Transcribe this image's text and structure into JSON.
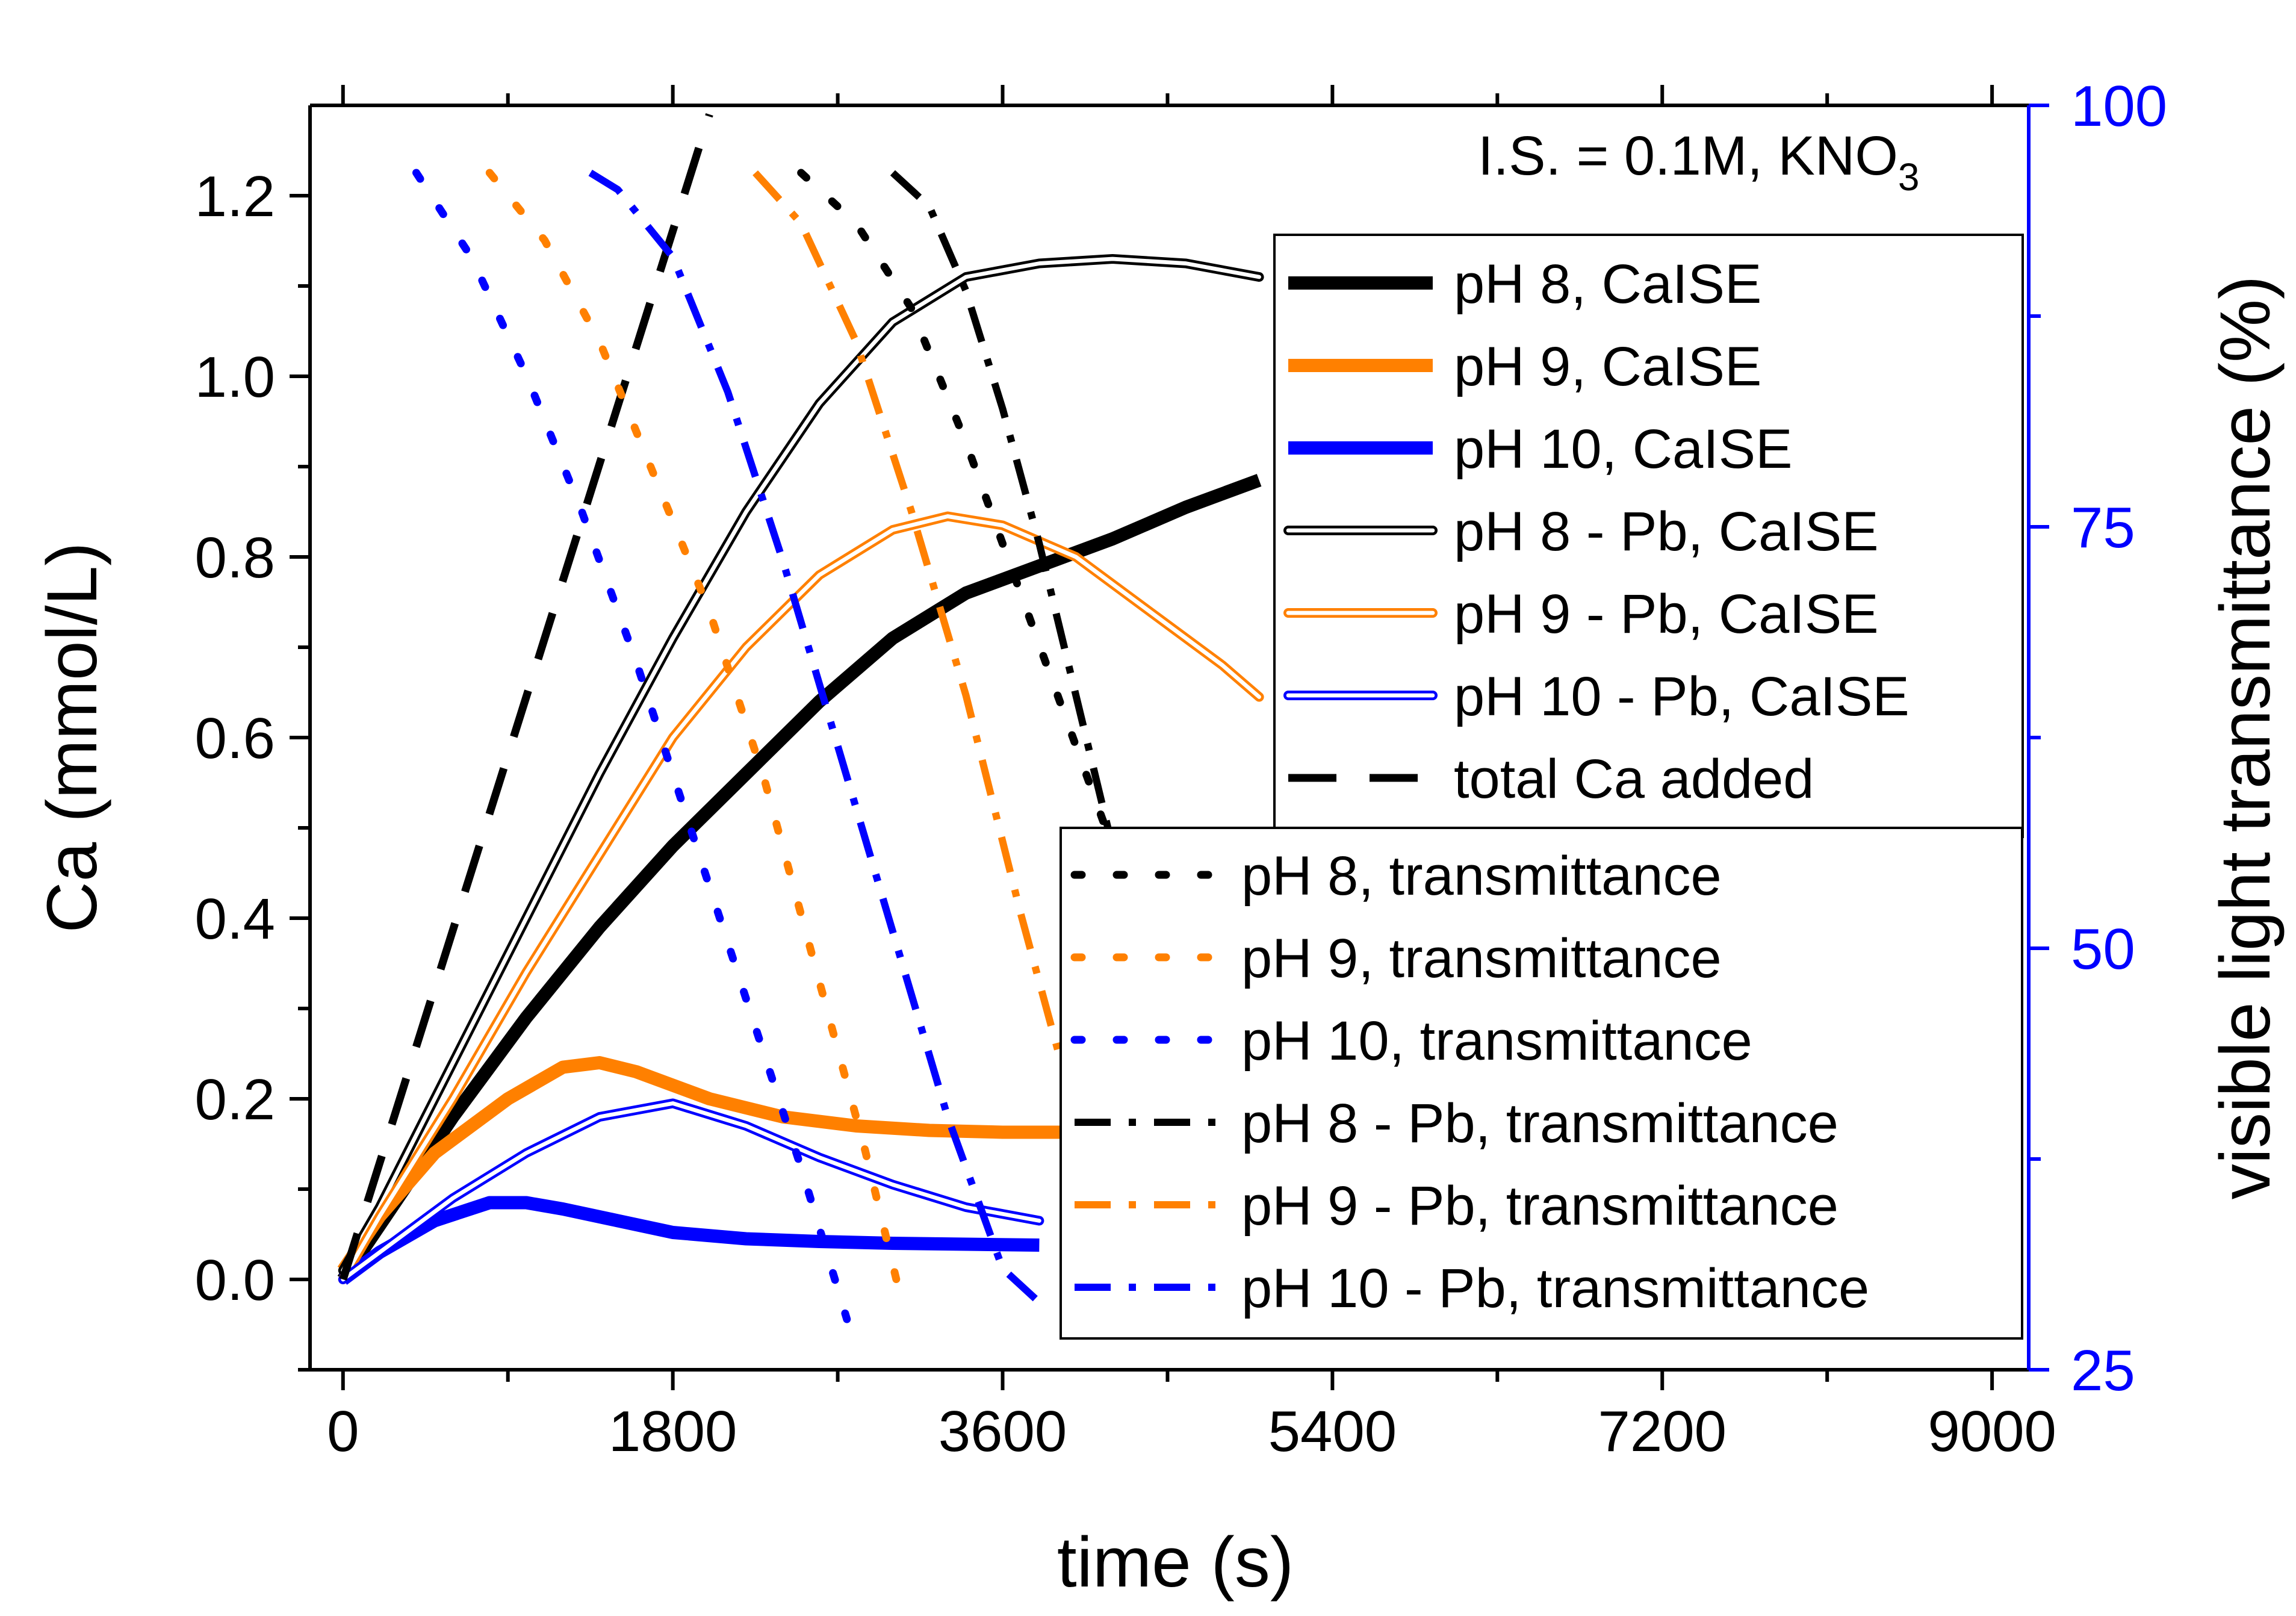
{
  "chart_data": {
    "type": "line",
    "title": "",
    "annotation": {
      "text": "I.S. = 0.1M, KNO",
      "subscript": "3"
    },
    "xlabel": "time (s)",
    "ylabel": "Ca (mmol/L)",
    "y2label": "visible light transmittance (%)",
    "xlim": [
      -180,
      9200
    ],
    "ylim": [
      -0.1,
      1.3
    ],
    "y2lim": [
      25,
      100
    ],
    "x_ticks": [
      0,
      1800,
      3600,
      5400,
      7200,
      9000
    ],
    "x_tick_labels": [
      "0",
      "1800",
      "3600",
      "5400",
      "7200",
      "9000"
    ],
    "y_ticks": [
      0.0,
      0.2,
      0.4,
      0.6,
      0.8,
      1.0,
      1.2
    ],
    "y_tick_labels": [
      "0.0",
      "0.2",
      "0.4",
      "0.6",
      "0.8",
      "1.0",
      "1.2"
    ],
    "y2_ticks": [
      25,
      50,
      75,
      100
    ],
    "y2_tick_labels": [
      "25",
      "50",
      "75",
      "100"
    ],
    "grid": false,
    "colors": {
      "black": "#000000",
      "orange": "#ff8000",
      "blue": "#0000ff",
      "right_axis": "#0000ff"
    },
    "legend_ca": {
      "placement": "top-right",
      "entries": [
        "pH 8, CaISE",
        "pH 9, CaISE",
        "pH 10, CaISE",
        "pH 8 - Pb, CaISE",
        "pH 9 - Pb, CaISE",
        "pH 10 - Pb, CaISE",
        "total Ca added"
      ]
    },
    "legend_transmittance": {
      "placement": "lower-right",
      "entries": [
        "pH 8, transmittance",
        "pH 9, transmittance",
        "pH 10, transmittance",
        "pH 8 - Pb, transmittance",
        "pH 9 - Pb, transmittance",
        "pH 10 - Pb, transmittance"
      ]
    },
    "series": [
      {
        "name": "pH 8, CaISE",
        "axis": "left",
        "color": "#000000",
        "style": "thick",
        "x": [
          0,
          200,
          600,
          1000,
          1400,
          1800,
          2200,
          2600,
          3000,
          3400,
          3800,
          4200,
          4600,
          5000
        ],
        "y": [
          0.0,
          0.06,
          0.18,
          0.29,
          0.39,
          0.48,
          0.56,
          0.64,
          0.71,
          0.76,
          0.79,
          0.82,
          0.855,
          0.885
        ]
      },
      {
        "name": "pH 9, CaISE",
        "axis": "left",
        "color": "#ff8000",
        "style": "thick",
        "x": [
          0,
          200,
          500,
          900,
          1200,
          1400,
          1600,
          2000,
          2400,
          2800,
          3200,
          3600,
          4000
        ],
        "y": [
          0.01,
          0.07,
          0.14,
          0.2,
          0.235,
          0.24,
          0.23,
          0.2,
          0.18,
          0.17,
          0.165,
          0.163,
          0.163
        ]
      },
      {
        "name": "pH 10, CaISE",
        "axis": "left",
        "color": "#0000ff",
        "style": "thick",
        "x": [
          0,
          200,
          500,
          800,
          1000,
          1200,
          1500,
          1800,
          2200,
          2600,
          3000,
          3400,
          3800
        ],
        "y": [
          0.0,
          0.03,
          0.065,
          0.085,
          0.085,
          0.078,
          0.065,
          0.052,
          0.045,
          0.042,
          0.04,
          0.039,
          0.038
        ]
      },
      {
        "name": "pH 8 - Pb, CaISE",
        "axis": "left",
        "color": "#000000",
        "style": "double",
        "x": [
          0,
          200,
          600,
          1000,
          1400,
          1800,
          2200,
          2600,
          3000,
          3400,
          3800,
          4200,
          4600,
          5000
        ],
        "y": [
          0.01,
          0.08,
          0.24,
          0.4,
          0.56,
          0.71,
          0.85,
          0.97,
          1.06,
          1.11,
          1.125,
          1.13,
          1.125,
          1.11
        ]
      },
      {
        "name": "pH 9 - Pb, CaISE",
        "axis": "left",
        "color": "#ff8000",
        "style": "double",
        "x": [
          0,
          200,
          600,
          1000,
          1400,
          1800,
          2200,
          2600,
          3000,
          3300,
          3600,
          4000,
          4400,
          4800,
          5000
        ],
        "y": [
          0.0,
          0.07,
          0.2,
          0.34,
          0.47,
          0.6,
          0.7,
          0.78,
          0.83,
          0.845,
          0.835,
          0.8,
          0.74,
          0.68,
          0.645
        ]
      },
      {
        "name": "pH 10 - Pb, CaISE",
        "axis": "left",
        "color": "#0000ff",
        "style": "double",
        "x": [
          0,
          200,
          600,
          1000,
          1400,
          1800,
          2200,
          2600,
          3000,
          3400,
          3800
        ],
        "y": [
          0.0,
          0.03,
          0.09,
          0.14,
          0.18,
          0.195,
          0.17,
          0.135,
          0.105,
          0.08,
          0.065
        ]
      },
      {
        "name": "total Ca added",
        "axis": "left",
        "color": "#000000",
        "style": "dash",
        "x": [
          0,
          2000
        ],
        "y": [
          0.0,
          1.29
        ]
      },
      {
        "name": "pH 8, transmittance",
        "axis": "right",
        "color": "#000000",
        "style": "dot",
        "x": [
          2500,
          2800,
          3100,
          3400,
          3700,
          4000,
          4200
        ],
        "y": [
          96,
          93,
          88,
          80,
          71,
          62,
          56
        ]
      },
      {
        "name": "pH 9, transmittance",
        "axis": "right",
        "color": "#ff8000",
        "style": "dot",
        "x": [
          800,
          1100,
          1400,
          1700,
          2000,
          2300,
          2600,
          2850,
          3050
        ],
        "y": [
          96,
          92,
          86,
          78,
          70,
          60,
          48,
          38,
          29
        ]
      },
      {
        "name": "pH 10, transmittance",
        "axis": "right",
        "color": "#0000ff",
        "style": "dot",
        "x": [
          400,
          700,
          1000,
          1300,
          1600,
          1900,
          2200,
          2500,
          2750
        ],
        "y": [
          96,
          91,
          84,
          76,
          67,
          57,
          47,
          37,
          28
        ]
      },
      {
        "name": "pH 8 - Pb, transmittance",
        "axis": "right",
        "color": "#000000",
        "style": "dashdot",
        "x": [
          3000,
          3200,
          3400,
          3600,
          3800,
          4000,
          4200
        ],
        "y": [
          96,
          94,
          89,
          82,
          74,
          65,
          56
        ]
      },
      {
        "name": "pH 9 - Pb, transmittance",
        "axis": "right",
        "color": "#ff8000",
        "style": "dashdot",
        "x": [
          2250,
          2500,
          2800,
          3100,
          3400,
          3700,
          3900
        ],
        "y": [
          96,
          93,
          86,
          76,
          65,
          52,
          44
        ]
      },
      {
        "name": "pH 10 - Pb, transmittance",
        "axis": "right",
        "color": "#0000ff",
        "style": "dashdot",
        "x": [
          1350,
          1500,
          1800,
          2100,
          2400,
          2700,
          3000,
          3300,
          3600,
          3800
        ],
        "y": [
          96,
          95,
          91,
          83,
          73,
          62,
          51,
          40,
          31,
          29
        ]
      }
    ]
  }
}
